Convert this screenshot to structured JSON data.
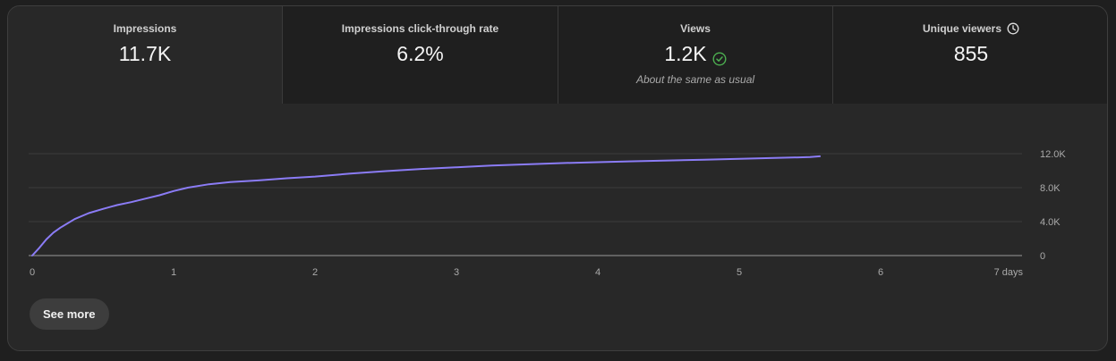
{
  "metrics": [
    {
      "label": "Impressions",
      "value": "11.7K",
      "note": ""
    },
    {
      "label": "Impressions click-through rate",
      "value": "6.2%",
      "note": ""
    },
    {
      "label": "Views",
      "value": "1.2K",
      "note": "About the same as usual"
    },
    {
      "label": "Unique viewers",
      "value": "855",
      "note": ""
    }
  ],
  "icons": {
    "views_status": "check-circle-icon",
    "unique_viewers": "clock-icon"
  },
  "colors": {
    "line": "#8b7cf6",
    "check": "#4caf50"
  },
  "chart_data": {
    "type": "line",
    "xlabel": "",
    "ylabel": "",
    "x_ticks": [
      "0",
      "1",
      "2",
      "3",
      "4",
      "5",
      "6",
      "7 days"
    ],
    "y_ticks": [
      "0",
      "4.0K",
      "8.0K",
      "12.0K"
    ],
    "xlim": [
      0,
      7
    ],
    "ylim": [
      0,
      12000
    ],
    "grid": true,
    "series": [
      {
        "x": [
          0,
          0.05,
          0.1,
          0.15,
          0.2,
          0.3,
          0.4,
          0.5,
          0.6,
          0.7,
          0.8,
          0.9,
          1.0,
          1.1,
          1.25,
          1.4,
          1.6,
          1.8,
          2.0,
          2.25,
          2.5,
          2.75,
          3.0,
          3.25,
          3.5,
          3.75,
          4.0,
          4.25,
          4.5,
          4.75,
          5.0,
          5.25,
          5.5,
          5.57
        ],
        "y": [
          0,
          900,
          1900,
          2700,
          3300,
          4300,
          5000,
          5500,
          5950,
          6300,
          6700,
          7100,
          7600,
          8000,
          8400,
          8650,
          8850,
          9100,
          9300,
          9650,
          9950,
          10200,
          10400,
          10600,
          10750,
          10900,
          11000,
          11100,
          11200,
          11300,
          11400,
          11500,
          11600,
          11700
        ]
      }
    ]
  },
  "see_more_label": "See more"
}
